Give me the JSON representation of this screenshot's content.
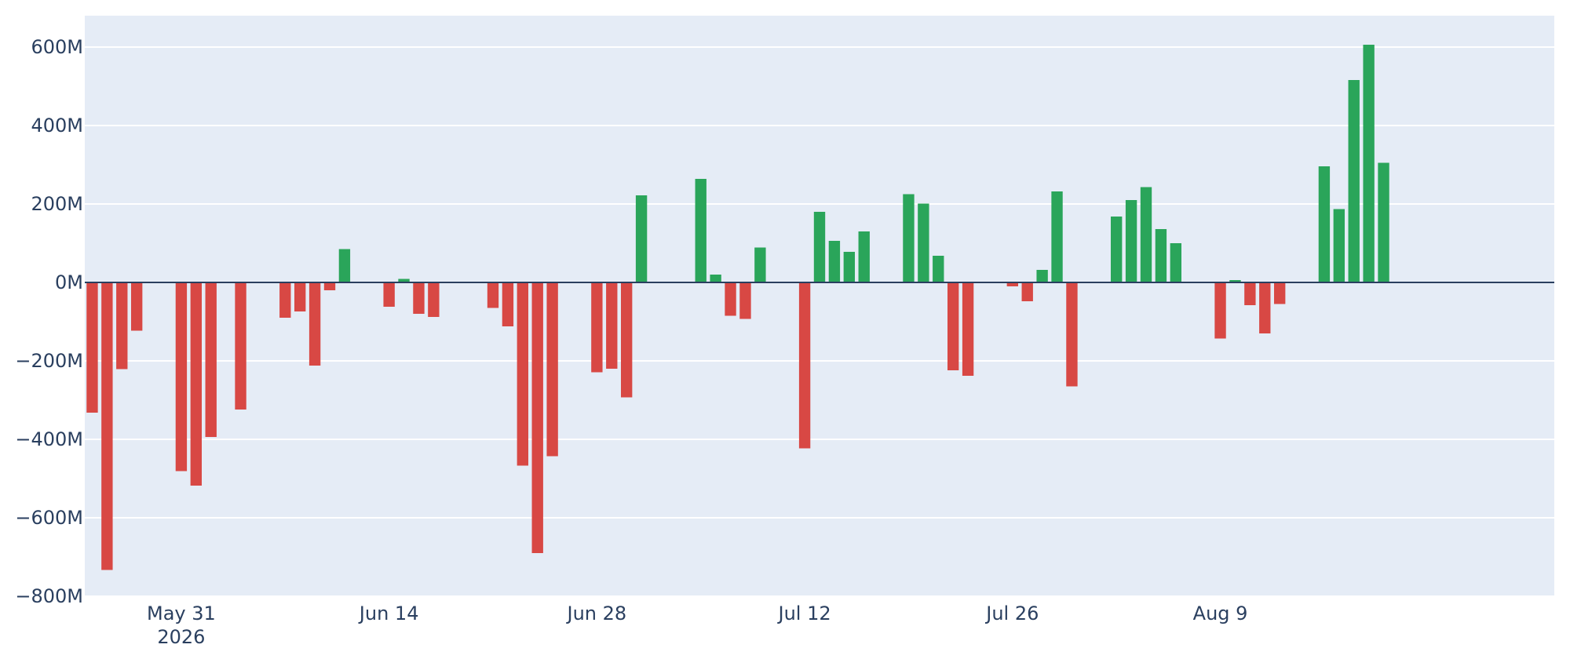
{
  "chart_data": {
    "type": "bar",
    "title": "",
    "xlabel": "",
    "ylabel": "",
    "ylim": [
      -800000000,
      680000000
    ],
    "xlim": [
      "2026-05-25",
      "2026-08-31"
    ],
    "grid": true,
    "legend": "none",
    "colors": {
      "positive": "#2aa55a",
      "negative": "#d84844",
      "plot_bg": "#e5ecf6",
      "grid": "#ffffff",
      "zeroline": "#2a3f5f",
      "text": "#2a3f5f"
    },
    "y_ticks": [
      {
        "value": 600000000,
        "label": "600M"
      },
      {
        "value": 400000000,
        "label": "400M"
      },
      {
        "value": 200000000,
        "label": "200M"
      },
      {
        "value": 0,
        "label": "0M"
      },
      {
        "value": -200000000,
        "label": "−200M"
      },
      {
        "value": -400000000,
        "label": "−400M"
      },
      {
        "value": -600000000,
        "label": "−600M"
      },
      {
        "value": -800000000,
        "label": "−800M"
      }
    ],
    "x_ticks": [
      {
        "date": "2026-05-31",
        "label": "May 31",
        "sublabel": "2026"
      },
      {
        "date": "2026-06-14",
        "label": "Jun 14"
      },
      {
        "date": "2026-06-28",
        "label": "Jun 28"
      },
      {
        "date": "2026-07-12",
        "label": "Jul 12"
      },
      {
        "date": "2026-07-26",
        "label": "Jul 26"
      },
      {
        "date": "2026-08-09",
        "label": "Aug 9"
      }
    ],
    "x": [
      "2026-05-25",
      "2026-05-26",
      "2026-05-27",
      "2026-05-28",
      "2026-05-31",
      "2026-06-01",
      "2026-06-02",
      "2026-06-03",
      "2026-06-04",
      "2026-06-07",
      "2026-06-08",
      "2026-06-09",
      "2026-06-10",
      "2026-06-11",
      "2026-06-14",
      "2026-06-15",
      "2026-06-16",
      "2026-06-17",
      "2026-06-21",
      "2026-06-22",
      "2026-06-23",
      "2026-06-24",
      "2026-06-25",
      "2026-06-28",
      "2026-06-29",
      "2026-06-30",
      "2026-07-01",
      "2026-07-05",
      "2026-07-06",
      "2026-07-07",
      "2026-07-08",
      "2026-07-09",
      "2026-07-12",
      "2026-07-13",
      "2026-07-14",
      "2026-07-15",
      "2026-07-16",
      "2026-07-19",
      "2026-07-20",
      "2026-07-21",
      "2026-07-22",
      "2026-07-23",
      "2026-07-26",
      "2026-07-27",
      "2026-07-28",
      "2026-07-29",
      "2026-07-30",
      "2026-08-02",
      "2026-08-03",
      "2026-08-04",
      "2026-08-05",
      "2026-08-06",
      "2026-08-09",
      "2026-08-10",
      "2026-08-11",
      "2026-08-12",
      "2026-08-13",
      "2026-08-16",
      "2026-08-17",
      "2026-08-18",
      "2026-08-19",
      "2026-08-20"
    ],
    "values": [
      -332000000,
      -733000000,
      -221000000,
      -123000000,
      -481000000,
      -518000000,
      -394000000,
      2000000,
      -324000000,
      -90000000,
      -74000000,
      -212000000,
      -20000000,
      85000000,
      -62000000,
      9000000,
      -80000000,
      -88000000,
      -65000000,
      -112000000,
      -467000000,
      -690000000,
      -443000000,
      -229000000,
      -220000000,
      -293000000,
      222000000,
      264000000,
      20000000,
      -85000000,
      -93000000,
      89000000,
      -423000000,
      180000000,
      106000000,
      78000000,
      130000000,
      225000000,
      201000000,
      68000000,
      -224000000,
      -238000000,
      -10000000,
      -48000000,
      32000000,
      232000000,
      -265000000,
      168000000,
      210000000,
      243000000,
      136000000,
      100000000,
      -143000000,
      6000000,
      -58000000,
      -130000000,
      -55000000,
      296000000,
      187000000,
      516000000,
      606000000,
      305000000
    ]
  }
}
